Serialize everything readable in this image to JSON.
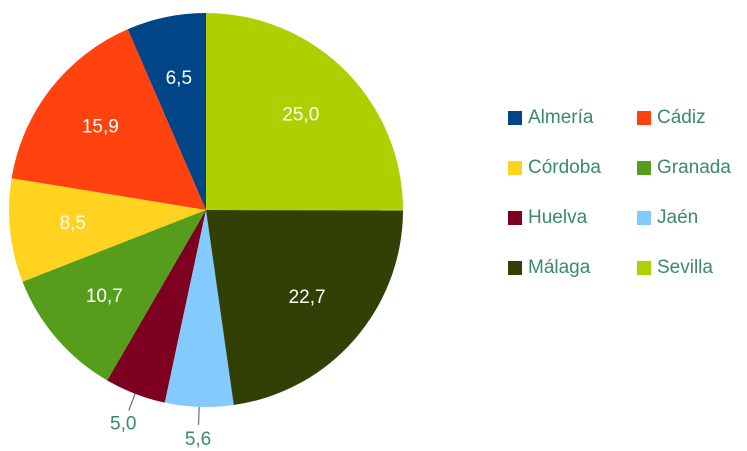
{
  "chart_data": {
    "type": "pie",
    "categories": [
      "Almería",
      "Cádiz",
      "Córdoba",
      "Granada",
      "Huelva",
      "Jaén",
      "Málaga",
      "Sevilla"
    ],
    "values": [
      6.5,
      15.9,
      8.5,
      10.7,
      5.0,
      5.6,
      22.7,
      25.0
    ],
    "value_labels": [
      "6,5",
      "15,9",
      "8,5",
      "10,7",
      "5,0",
      "5,6",
      "22,7",
      "25,0"
    ],
    "colors": [
      "#004586",
      "#ff420e",
      "#ffd320",
      "#579d1c",
      "#7e0021",
      "#83caff",
      "#314004",
      "#aecf00"
    ],
    "legend": "right"
  }
}
